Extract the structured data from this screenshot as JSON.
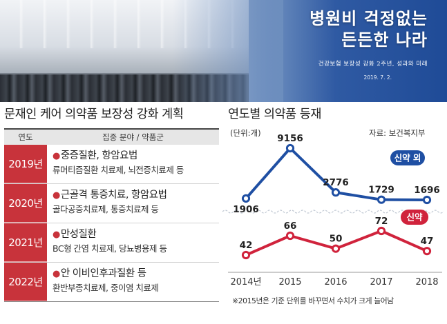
{
  "banner": {
    "headline_line1": "병원비 걱정없는",
    "headline_line2": "든든한 나라",
    "subheadline": "건강보험 보장성 강화 2주년, 성과와 미래",
    "date": "2019. 7. 2."
  },
  "plan_table": {
    "title": "문재인 케어 의약품 보장성 강화 계획",
    "header_year": "연도",
    "header_field": "집중 분야 / 약품군",
    "rows": [
      {
        "year": "2019년",
        "main": "중증질환, 항암요법",
        "sub": "류머티즘질환 치료제, 뇌전증치료제 등"
      },
      {
        "year": "2020년",
        "main": "근골격 통증치료, 항암요법",
        "sub": "골다공증치료제, 통증치료제 등"
      },
      {
        "year": "2021년",
        "main": "만성질환",
        "sub": "BC형 간염 치료제, 당뇨병용제 등"
      },
      {
        "year": "2022년",
        "main": "안 이비인후과질환 등",
        "sub": "환반부종치료제, 중이염 치료제"
      }
    ]
  },
  "chart_panel": {
    "title": "연도별 의약품 등재",
    "unit": "(단위:개)",
    "source": "자료: 보건복지부",
    "footnote": "※2015년은 기준 단위를 바꾸면서 수치가 크게 늘어남"
  },
  "chart_data": {
    "type": "line",
    "x": [
      "2014년",
      "2015",
      "2016",
      "2017",
      "2018"
    ],
    "series": [
      {
        "name": "신약 외",
        "values": [
          1906,
          9156,
          2776,
          1729,
          1696
        ],
        "color": "#1f4fa3"
      },
      {
        "name": "신약",
        "values": [
          42,
          66,
          50,
          72,
          47
        ],
        "color": "#d0233c"
      }
    ],
    "ylabel": "(단위:개)",
    "grid": false,
    "axis_break": true
  },
  "colors": {
    "accent_red": "#c8333b",
    "accent_blue": "#1f4fa3"
  }
}
